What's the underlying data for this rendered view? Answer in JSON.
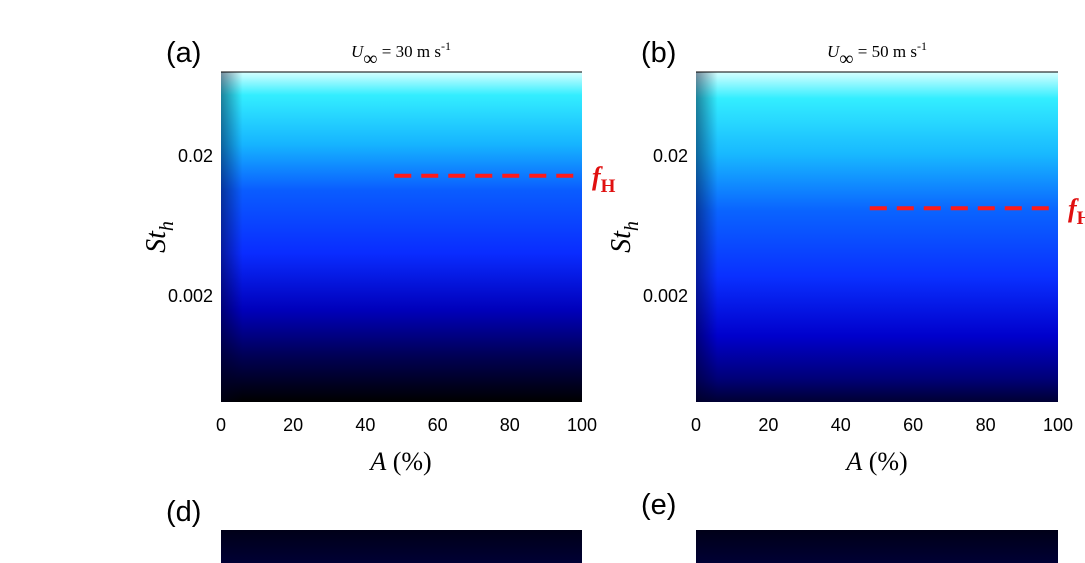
{
  "colors": {
    "marker_line": "#ff1a1a",
    "marker_label": "#e01010",
    "axis": "#000000",
    "colormap": [
      "#000000",
      "#0000aa",
      "#0a3cff",
      "#16a0ff",
      "#33eeff",
      "#d8ffff"
    ]
  },
  "chart_data": [
    {
      "type": "heatmap",
      "panel_label": "(a)",
      "title": {
        "base": "U",
        "sub": "∞",
        "rest": " = 30 m s",
        "sup": "-1"
      },
      "xlabel": {
        "var": "A",
        "unit": " (%)"
      },
      "ylabel": {
        "var": "St",
        "sub": "h"
      },
      "x_ticks": [
        "0",
        "20",
        "40",
        "60",
        "80",
        "100"
      ],
      "x_tick_values": [
        0,
        20,
        40,
        60,
        80,
        100
      ],
      "xlim": [
        0,
        100
      ],
      "y_ticks": [
        "0.02",
        "0.002"
      ],
      "y_tick_values": [
        0.02,
        0.002
      ],
      "y_scale": "log",
      "ylim": [
        0.00035,
        0.08
      ],
      "marker": {
        "label": "f",
        "label_sub": "H",
        "y": 0.0145,
        "x_start": 48,
        "x_end": 100,
        "style": "dashed"
      }
    },
    {
      "type": "heatmap",
      "panel_label": "(b)",
      "title": {
        "base": "U",
        "sub": "∞",
        "rest": " = 50 m s",
        "sup": "-1"
      },
      "xlabel": {
        "var": "A",
        "unit": " (%)"
      },
      "ylabel": {
        "var": "St",
        "sub": "h"
      },
      "x_ticks": [
        "0",
        "20",
        "40",
        "60",
        "80",
        "100"
      ],
      "x_tick_values": [
        0,
        20,
        40,
        60,
        80,
        100
      ],
      "xlim": [
        0,
        100
      ],
      "y_ticks": [
        "0.02",
        "0.002"
      ],
      "y_tick_values": [
        0.02,
        0.002
      ],
      "y_scale": "log",
      "ylim": [
        0.00035,
        0.08
      ],
      "marker": {
        "label": "f",
        "label_sub": "H",
        "y": 0.0085,
        "x_start": 48,
        "x_end": 100,
        "style": "dashed"
      }
    },
    {
      "type": "heatmap",
      "panel_label": "(d)"
    },
    {
      "type": "heatmap",
      "panel_label": "(e)"
    }
  ]
}
